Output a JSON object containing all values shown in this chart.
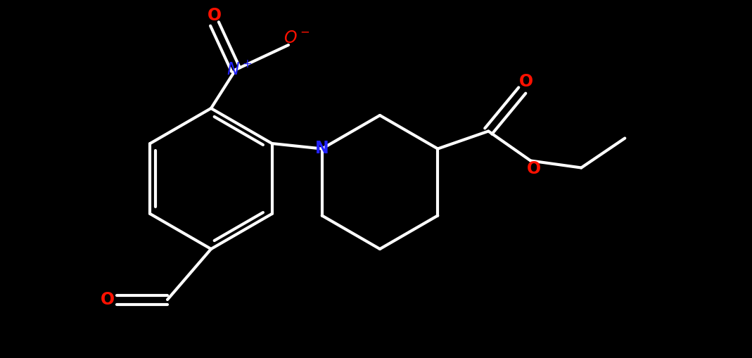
{
  "bg_color": "#000000",
  "bond_color": "#ffffff",
  "bond_width": 3.0,
  "N_color": "#2222ff",
  "O_color": "#ff1100",
  "font_size": 16,
  "fig_width": 10.69,
  "fig_height": 5.09,
  "dpi": 100,
  "xlim": [
    0,
    10.69
  ],
  "ylim": [
    0,
    5.09
  ]
}
